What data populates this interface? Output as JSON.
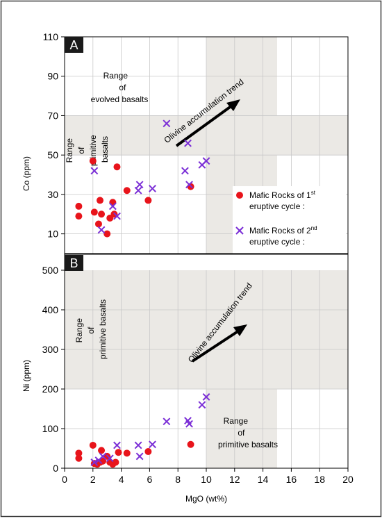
{
  "chart_data": [
    {
      "type": "scatter",
      "panel_label": "A",
      "ylabel": "Co (ppm)",
      "xlim": [
        0,
        20
      ],
      "ylim": [
        0,
        110
      ],
      "yticks": [
        10,
        30,
        50,
        70,
        90,
        110
      ],
      "grid": true,
      "shaded_regions": [
        {
          "x": [
            0,
            20
          ],
          "y": [
            50,
            70
          ]
        },
        {
          "x": [
            10,
            15
          ],
          "y": [
            0,
            110
          ]
        }
      ],
      "annotations": [
        {
          "lines": [
            "Range",
            "of",
            "evolved basalts"
          ]
        },
        {
          "lines": [
            "Range",
            "of",
            "primitive",
            "basalts"
          ],
          "rotated": true
        },
        {
          "text": "Olivine accumulation trend",
          "arrow_from": [
            8,
            52
          ],
          "arrow_to": [
            12.5,
            72
          ]
        }
      ],
      "legend_position": "bottom-right",
      "series": [
        {
          "name": "Mafic Rocks of 1st eruptive cycle",
          "marker": "circle",
          "color": "#e8141b",
          "x": [
            1.0,
            1.0,
            2.0,
            2.1,
            2.4,
            2.5,
            2.6,
            3.0,
            3.2,
            3.4,
            3.5,
            3.7,
            4.4,
            5.9,
            8.9
          ],
          "y": [
            24,
            19,
            47,
            21,
            15,
            27,
            20,
            10,
            18,
            26,
            20,
            44,
            32,
            27,
            34
          ]
        },
        {
          "name": "Mafic Rocks of 2nd eruptive cycle",
          "marker": "x",
          "color": "#7b2fd6",
          "x": [
            2.1,
            2.6,
            3.4,
            3.7,
            5.2,
            5.3,
            6.2,
            7.2,
            8.5,
            8.7,
            8.8,
            9.7,
            10.0
          ],
          "y": [
            42,
            12,
            24,
            19,
            32,
            35,
            33,
            66,
            42,
            56,
            35,
            45,
            47
          ]
        }
      ]
    },
    {
      "type": "scatter",
      "panel_label": "B",
      "xlabel": "MgO (wt%)",
      "ylabel": "Ni (ppm)",
      "xlim": [
        0,
        20
      ],
      "ylim": [
        0,
        500
      ],
      "xticks": [
        0,
        2,
        4,
        6,
        8,
        10,
        12,
        14,
        16,
        18,
        20
      ],
      "yticks": [
        0,
        100,
        200,
        300,
        400,
        500
      ],
      "grid": true,
      "shaded_regions": [
        {
          "x": [
            0,
            20
          ],
          "y": [
            200,
            500
          ]
        },
        {
          "x": [
            10,
            15
          ],
          "y": [
            0,
            500
          ]
        }
      ],
      "annotations": [
        {
          "lines": [
            "Range",
            "of",
            "primitive basalts"
          ],
          "rotated": true
        },
        {
          "text": "Olivine accumulation trend",
          "arrow_from": [
            9,
            270
          ],
          "arrow_to": [
            13.5,
            360
          ]
        },
        {
          "lines": [
            "Range",
            "of",
            "primitive basalts"
          ]
        }
      ],
      "series": [
        {
          "name": "Mafic Rocks of 1st eruptive cycle",
          "marker": "circle",
          "color": "#e8141b",
          "x": [
            1.0,
            1.0,
            2.0,
            2.1,
            2.3,
            2.5,
            2.6,
            2.7,
            3.0,
            3.2,
            3.4,
            3.6,
            3.8,
            4.4,
            5.9,
            8.9
          ],
          "y": [
            38,
            25,
            58,
            12,
            10,
            15,
            45,
            18,
            30,
            15,
            10,
            15,
            40,
            38,
            42,
            60
          ]
        },
        {
          "name": "Mafic Rocks of 2nd eruptive cycle",
          "marker": "x",
          "color": "#7b2fd6",
          "x": [
            2.1,
            2.4,
            2.7,
            3.2,
            3.7,
            5.2,
            5.3,
            6.2,
            7.2,
            8.7,
            8.8,
            9.7,
            10.0
          ],
          "y": [
            15,
            20,
            30,
            25,
            58,
            58,
            30,
            60,
            118,
            120,
            112,
            160,
            180
          ]
        }
      ]
    }
  ],
  "legend": {
    "items": [
      {
        "marker": "circle",
        "color": "#e8141b",
        "line1_pre": "Mafic Rocks of 1",
        "line1_sup": "st",
        "line2": "eruptive cycle :"
      },
      {
        "marker": "x",
        "color": "#7b2fd6",
        "line1_pre": "Mafic Rocks of 2",
        "line1_sup": "nd",
        "line2": "eruptive cycle :"
      }
    ]
  },
  "colors": {
    "circle": "#e8141b",
    "cross": "#7b2fd6",
    "shade": "#ebe9e5",
    "grid": "#c8c8c8",
    "frame": "#000000"
  }
}
